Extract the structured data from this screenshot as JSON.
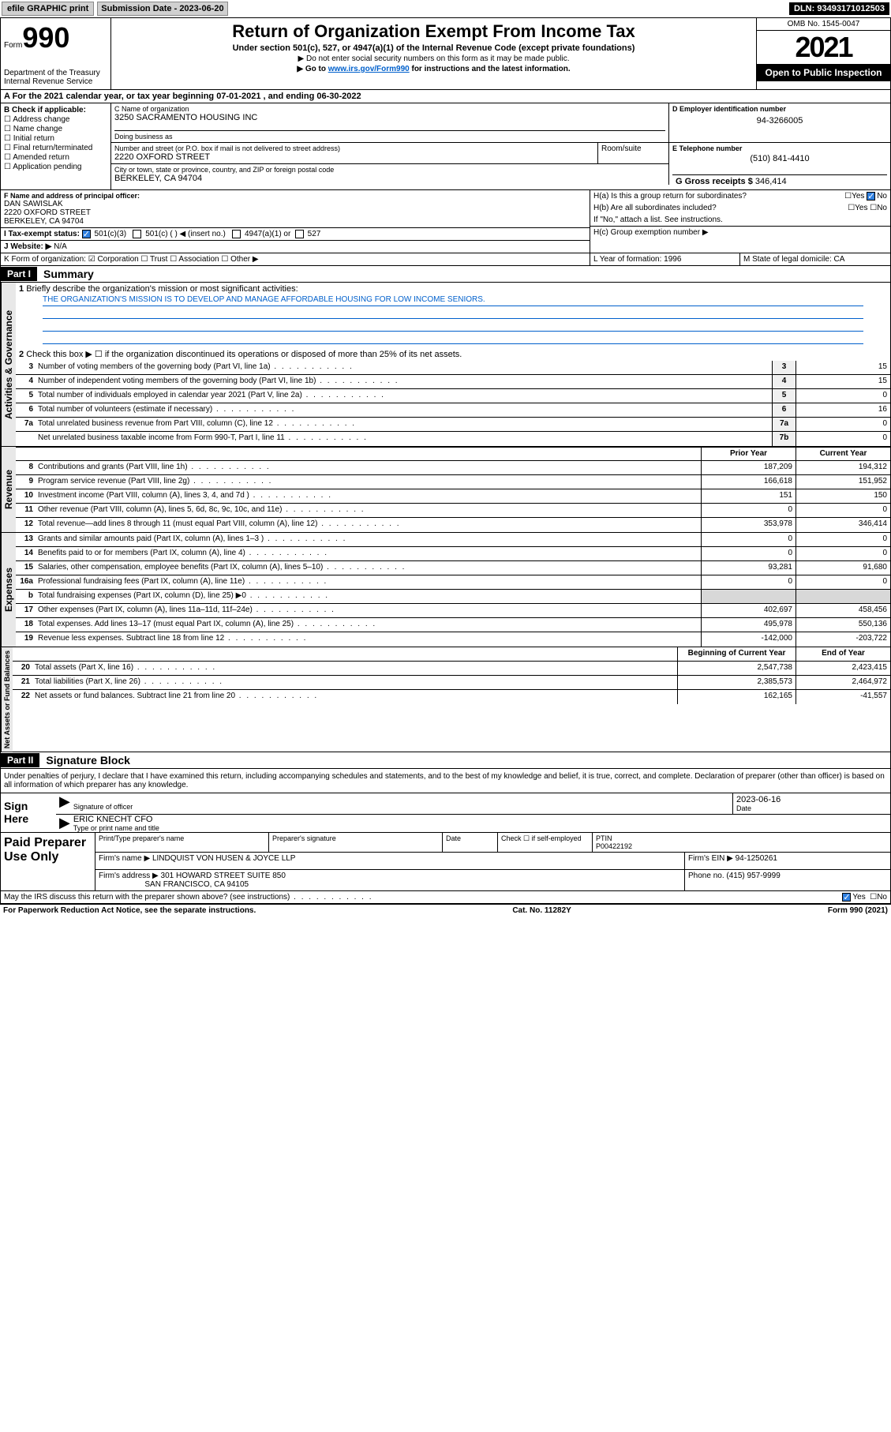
{
  "topbar": {
    "efile": "efile GRAPHIC print",
    "sub_label": "Submission Date - 2023-06-20",
    "dln": "DLN: 93493171012503"
  },
  "header": {
    "form_label": "Form",
    "form_num": "990",
    "dept": "Department of the Treasury Internal Revenue Service",
    "title": "Return of Organization Exempt From Income Tax",
    "sub1": "Under section 501(c), 527, or 4947(a)(1) of the Internal Revenue Code (except private foundations)",
    "sub2": "▶ Do not enter social security numbers on this form as it may be made public.",
    "sub3_pre": "▶ Go to ",
    "sub3_link": "www.irs.gov/Form990",
    "sub3_post": " for instructions and the latest information.",
    "omb": "OMB No. 1545-0047",
    "year": "2021",
    "inspect": "Open to Public Inspection"
  },
  "row_a": "A For the 2021 calendar year, or tax year beginning 07-01-2021  , and ending 06-30-2022",
  "box_b": {
    "hdr": "B Check if applicable:",
    "opts": [
      "☐ Address change",
      "☐ Name change",
      "☐ Initial return",
      "☐ Final return/terminated",
      "☐ Amended return",
      "☐ Application pending"
    ]
  },
  "box_c": {
    "name_lbl": "C Name of organization",
    "name": "3250 SACRAMENTO HOUSING INC",
    "dba_lbl": "Doing business as",
    "street_lbl": "Number and street (or P.O. box if mail is not delivered to street address)",
    "street": "2220 OXFORD STREET",
    "suite_lbl": "Room/suite",
    "city_lbl": "City or town, state or province, country, and ZIP or foreign postal code",
    "city": "BERKELEY, CA  94704"
  },
  "box_d": {
    "lbl": "D Employer identification number",
    "val": "94-3266005"
  },
  "box_e": {
    "lbl": "E Telephone number",
    "val": "(510) 841-4410"
  },
  "box_g": {
    "lbl": "G Gross receipts $",
    "val": "346,414"
  },
  "box_f": {
    "lbl": "F Name and address of principal officer:",
    "name": "DAN SAWISLAK",
    "addr1": "2220 OXFORD STREET",
    "addr2": "BERKELEY, CA  94704"
  },
  "box_h": {
    "ha": "H(a)  Is this a group return for subordinates?",
    "ha_no": "No",
    "hb": "H(b)  Are all subordinates included?",
    "hb_note": "If \"No,\" attach a list. See instructions.",
    "hc": "H(c)  Group exemption number ▶"
  },
  "row_i": {
    "lbl": "I  Tax-exempt status:",
    "c1": "501(c)(3)",
    "c2": "501(c) (  ) ◀ (insert no.)",
    "c3": "4947(a)(1) or",
    "c4": "527"
  },
  "row_j": {
    "lbl": "J  Website: ▶",
    "val": "N/A"
  },
  "row_k": "K Form of organization:  ☑ Corporation  ☐ Trust  ☐ Association  ☐ Other ▶",
  "row_l": "L Year of formation: 1996",
  "row_m": "M State of legal domicile: CA",
  "part1": {
    "hdr": "Part I",
    "title": "Summary"
  },
  "summary": {
    "q1": "Briefly describe the organization's mission or most significant activities:",
    "mission": "THE ORGANIZATION'S MISSION IS TO DEVELOP AND MANAGE AFFORDABLE HOUSING FOR LOW INCOME SENIORS.",
    "q2": "Check this box ▶ ☐  if the organization discontinued its operations or disposed of more than 25% of its net assets.",
    "rows_gov": [
      {
        "n": "3",
        "d": "Number of voting members of the governing body (Part VI, line 1a)",
        "b": "3",
        "v": "15"
      },
      {
        "n": "4",
        "d": "Number of independent voting members of the governing body (Part VI, line 1b)",
        "b": "4",
        "v": "15"
      },
      {
        "n": "5",
        "d": "Total number of individuals employed in calendar year 2021 (Part V, line 2a)",
        "b": "5",
        "v": "0"
      },
      {
        "n": "6",
        "d": "Total number of volunteers (estimate if necessary)",
        "b": "6",
        "v": "16"
      },
      {
        "n": "7a",
        "d": "Total unrelated business revenue from Part VIII, column (C), line 12",
        "b": "7a",
        "v": "0"
      },
      {
        "n": "",
        "d": "Net unrelated business taxable income from Form 990-T, Part I, line 11",
        "b": "7b",
        "v": "0"
      }
    ],
    "hdr_prior": "Prior Year",
    "hdr_curr": "Current Year",
    "rows_rev": [
      {
        "n": "8",
        "d": "Contributions and grants (Part VIII, line 1h)",
        "p": "187,209",
        "c": "194,312"
      },
      {
        "n": "9",
        "d": "Program service revenue (Part VIII, line 2g)",
        "p": "166,618",
        "c": "151,952"
      },
      {
        "n": "10",
        "d": "Investment income (Part VIII, column (A), lines 3, 4, and 7d )",
        "p": "151",
        "c": "150"
      },
      {
        "n": "11",
        "d": "Other revenue (Part VIII, column (A), lines 5, 6d, 8c, 9c, 10c, and 11e)",
        "p": "0",
        "c": "0"
      },
      {
        "n": "12",
        "d": "Total revenue—add lines 8 through 11 (must equal Part VIII, column (A), line 12)",
        "p": "353,978",
        "c": "346,414"
      }
    ],
    "rows_exp": [
      {
        "n": "13",
        "d": "Grants and similar amounts paid (Part IX, column (A), lines 1–3 )",
        "p": "0",
        "c": "0"
      },
      {
        "n": "14",
        "d": "Benefits paid to or for members (Part IX, column (A), line 4)",
        "p": "0",
        "c": "0"
      },
      {
        "n": "15",
        "d": "Salaries, other compensation, employee benefits (Part IX, column (A), lines 5–10)",
        "p": "93,281",
        "c": "91,680"
      },
      {
        "n": "16a",
        "d": "Professional fundraising fees (Part IX, column (A), line 11e)",
        "p": "0",
        "c": "0"
      },
      {
        "n": "b",
        "d": "Total fundraising expenses (Part IX, column (D), line 25) ▶0",
        "p": "",
        "c": "",
        "shade": true
      },
      {
        "n": "17",
        "d": "Other expenses (Part IX, column (A), lines 11a–11d, 11f–24e)",
        "p": "402,697",
        "c": "458,456"
      },
      {
        "n": "18",
        "d": "Total expenses. Add lines 13–17 (must equal Part IX, column (A), line 25)",
        "p": "495,978",
        "c": "550,136"
      },
      {
        "n": "19",
        "d": "Revenue less expenses. Subtract line 18 from line 12",
        "p": "-142,000",
        "c": "-203,722"
      }
    ],
    "hdr_beg": "Beginning of Current Year",
    "hdr_end": "End of Year",
    "rows_net": [
      {
        "n": "20",
        "d": "Total assets (Part X, line 16)",
        "p": "2,547,738",
        "c": "2,423,415"
      },
      {
        "n": "21",
        "d": "Total liabilities (Part X, line 26)",
        "p": "2,385,573",
        "c": "2,464,972"
      },
      {
        "n": "22",
        "d": "Net assets or fund balances. Subtract line 21 from line 20",
        "p": "162,165",
        "c": "-41,557"
      }
    ],
    "side_gov": "Activities & Governance",
    "side_rev": "Revenue",
    "side_exp": "Expenses",
    "side_net": "Net Assets or Fund Balances"
  },
  "part2": {
    "hdr": "Part II",
    "title": "Signature Block"
  },
  "sig": {
    "decl": "Under penalties of perjury, I declare that I have examined this return, including accompanying schedules and statements, and to the best of my knowledge and belief, it is true, correct, and complete. Declaration of preparer (other than officer) is based on all information of which preparer has any knowledge.",
    "sign_here": "Sign Here",
    "sig_off": "Signature of officer",
    "date": "2023-06-16",
    "date_lbl": "Date",
    "name": "ERIC KNECHT CFO",
    "name_lbl": "Type or print name and title"
  },
  "paid": {
    "left": "Paid Preparer Use Only",
    "h_name": "Print/Type preparer's name",
    "h_sig": "Preparer's signature",
    "h_date": "Date",
    "h_check": "Check ☐ if self-employed",
    "h_ptin": "PTIN",
    "ptin": "P00422192",
    "firm_lbl": "Firm's name    ▶",
    "firm": "LINDQUIST VON HUSEN & JOYCE LLP",
    "ein_lbl": "Firm's EIN ▶",
    "ein": "94-1250261",
    "addr_lbl": "Firm's address ▶",
    "addr1": "301 HOWARD STREET SUITE 850",
    "addr2": "SAN FRANCISCO, CA  94105",
    "phone_lbl": "Phone no.",
    "phone": "(415) 957-9999"
  },
  "may": "May the IRS discuss this return with the preparer shown above? (see instructions)",
  "footer": {
    "left": "For Paperwork Reduction Act Notice, see the separate instructions.",
    "mid": "Cat. No. 11282Y",
    "right": "Form 990 (2021)"
  }
}
